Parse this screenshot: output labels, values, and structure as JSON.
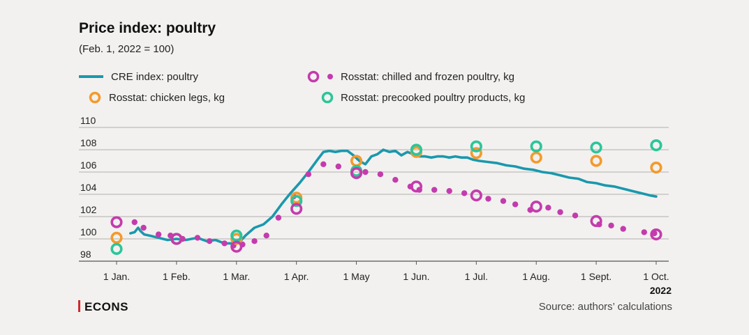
{
  "colors": {
    "background": "#f2f1ef",
    "cre_line": "#1a98ad",
    "chilled_frozen": "#c43bad",
    "chicken_legs": "#f39a2d",
    "precooked": "#2cc59a",
    "grid": "#9a9a9a",
    "brand_bar": "#d0282e"
  },
  "icons": {
    "brand_mark": "red-vertical-bar-icon"
  },
  "chart_data": {
    "type": "line",
    "title": "Price index: poultry",
    "subtitle": "(Feb. 1, 2022 = 100)",
    "xlabel": "",
    "ylabel": "",
    "year_label": "2022",
    "x_unit": "months since Jan. 1, 2022",
    "xlim": [
      0,
      9
    ],
    "ylim": [
      98,
      110
    ],
    "yticks": [
      98,
      100,
      102,
      104,
      106,
      108,
      110
    ],
    "ytick_labels": [
      "98",
      "100",
      "102",
      "104",
      "106",
      "108",
      "110"
    ],
    "xticks": [
      0,
      1,
      2,
      3,
      4,
      5,
      6,
      7,
      8,
      9
    ],
    "xtick_labels": [
      "1 Jan.",
      "1 Feb.",
      "1 Mar.",
      "1 Apr.",
      "1 May",
      "1 Jun.",
      "1 Jul.",
      "1 Aug.",
      "1 Sept.",
      "1 Oct."
    ],
    "grid": true,
    "legend_position": "top",
    "series": [
      {
        "name": "CRE index: poultry",
        "kind": "line",
        "color": "#1a98ad",
        "x": [
          0.23,
          0.3,
          0.36,
          0.4,
          0.46,
          0.55,
          0.7,
          0.85,
          1.0,
          1.15,
          1.35,
          1.5,
          1.65,
          1.8,
          1.95,
          2.05,
          2.15,
          2.3,
          2.45,
          2.6,
          2.75,
          2.9,
          3.05,
          3.2,
          3.35,
          3.45,
          3.55,
          3.65,
          3.75,
          3.85,
          3.95,
          4.05,
          4.15,
          4.25,
          4.35,
          4.45,
          4.55,
          4.65,
          4.75,
          4.85,
          4.95,
          5.05,
          5.15,
          5.25,
          5.35,
          5.45,
          5.55,
          5.65,
          5.75,
          5.85,
          5.95,
          6.05,
          6.2,
          6.35,
          6.5,
          6.65,
          6.8,
          6.95,
          7.1,
          7.25,
          7.4,
          7.55,
          7.7,
          7.85,
          8.0,
          8.15,
          8.3,
          8.45,
          8.6,
          8.75,
          8.9,
          9.0
        ],
        "values": [
          100.5,
          100.6,
          101.0,
          100.7,
          100.4,
          100.3,
          100.1,
          99.9,
          100.0,
          99.9,
          100.1,
          99.8,
          99.9,
          99.6,
          99.6,
          99.7,
          100.3,
          101.0,
          101.3,
          102.0,
          103.1,
          104.1,
          105.0,
          106.0,
          107.1,
          107.8,
          107.9,
          107.8,
          107.9,
          107.9,
          107.5,
          107.0,
          106.7,
          107.4,
          107.6,
          108.0,
          107.8,
          107.9,
          107.5,
          107.8,
          107.6,
          107.4,
          107.4,
          107.3,
          107.4,
          107.4,
          107.3,
          107.4,
          107.3,
          107.3,
          107.1,
          107.0,
          106.9,
          106.8,
          106.6,
          106.5,
          106.3,
          106.2,
          106.0,
          105.9,
          105.7,
          105.5,
          105.4,
          105.1,
          105.0,
          104.8,
          104.7,
          104.5,
          104.3,
          104.1,
          103.9,
          103.8
        ]
      },
      {
        "name": "Rosstat: chilled and frozen poultry, kg",
        "kind": "points",
        "color": "#c43bad",
        "weekly": {
          "x": [
            0.3,
            0.45,
            0.7,
            0.9,
            1.1,
            1.35,
            1.55,
            1.8,
            1.95,
            2.1,
            2.3,
            2.5,
            2.7,
            2.95,
            3.2,
            3.45,
            3.7,
            4.15,
            4.4,
            4.65,
            4.9,
            5.05,
            5.3,
            5.55,
            5.8,
            6.2,
            6.45,
            6.65,
            6.9,
            7.2,
            7.4,
            7.65,
            8.05,
            8.25,
            8.45,
            8.8,
            8.97
          ],
          "values": [
            101.5,
            101.0,
            100.4,
            100.3,
            100.0,
            100.1,
            99.8,
            99.6,
            99.4,
            99.5,
            99.8,
            100.3,
            101.9,
            103.8,
            105.8,
            106.7,
            106.5,
            106.0,
            105.8,
            105.3,
            104.7,
            104.4,
            104.4,
            104.3,
            104.1,
            103.6,
            103.4,
            103.1,
            102.6,
            102.8,
            102.4,
            102.1,
            101.3,
            101.2,
            100.9,
            100.6,
            100.5
          ]
        },
        "monthly": {
          "x": [
            0,
            1,
            2,
            3,
            4,
            5,
            6,
            7,
            8,
            9
          ],
          "values": [
            101.5,
            100.0,
            99.3,
            102.7,
            105.9,
            104.7,
            103.9,
            102.9,
            101.6,
            100.4
          ]
        }
      },
      {
        "name": "Rosstat: chicken legs, kg",
        "kind": "points",
        "color": "#f39a2d",
        "x": [
          0,
          1,
          2,
          3,
          4,
          5,
          6,
          7,
          8,
          9
        ],
        "values": [
          100.1,
          100.0,
          100.0,
          103.7,
          107.0,
          107.8,
          107.7,
          107.3,
          107.0,
          106.4
        ]
      },
      {
        "name": "Rosstat: precooked poultry products, kg",
        "kind": "points",
        "color": "#2cc59a",
        "x": [
          0,
          1,
          2,
          3,
          4,
          5,
          6,
          7,
          8,
          9
        ],
        "values": [
          99.1,
          100.0,
          100.3,
          103.4,
          106.1,
          108.0,
          108.3,
          108.3,
          108.2,
          108.4
        ]
      }
    ]
  },
  "footer": {
    "source": "Source: authors’ calculations",
    "brand": "ECONS"
  }
}
